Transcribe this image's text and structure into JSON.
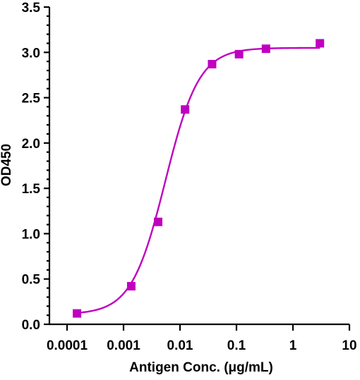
{
  "chart_data": {
    "type": "scatter",
    "title": "",
    "xlabel": "Antigen Conc. (μg/mL)",
    "ylabel": "OD450",
    "x_scale": "log",
    "xlim": [
      0.0001,
      10
    ],
    "ylim": [
      0,
      3.5
    ],
    "x_ticks": [
      {
        "value": 0.0001,
        "label": "0.0001"
      },
      {
        "value": 0.001,
        "label": "0.001"
      },
      {
        "value": 0.01,
        "label": "0.01"
      },
      {
        "value": 0.1,
        "label": "0.1"
      },
      {
        "value": 1,
        "label": "1"
      },
      {
        "value": 10,
        "label": "10"
      }
    ],
    "y_ticks": [
      {
        "value": 0,
        "label": "0.0"
      },
      {
        "value": 0.5,
        "label": "0.5"
      },
      {
        "value": 1.0,
        "label": "1.0"
      },
      {
        "value": 1.5,
        "label": "1.5"
      },
      {
        "value": 2.0,
        "label": "2.0"
      },
      {
        "value": 2.5,
        "label": "2.5"
      },
      {
        "value": 3.0,
        "label": "3.0"
      },
      {
        "value": 3.5,
        "label": "3.5"
      }
    ],
    "grid": false,
    "legend": "none",
    "series": [
      {
        "marker": "square",
        "color": "#c000c0",
        "points": [
          {
            "x": 0.00015,
            "y": 0.12
          },
          {
            "x": 0.00137,
            "y": 0.42
          },
          {
            "x": 0.0041,
            "y": 1.13
          },
          {
            "x": 0.0123,
            "y": 2.37
          },
          {
            "x": 0.037,
            "y": 2.87
          },
          {
            "x": 0.111,
            "y": 2.98
          },
          {
            "x": 0.333,
            "y": 3.04
          },
          {
            "x": 3.0,
            "y": 3.1
          }
        ]
      }
    ],
    "fit_curve": {
      "model": "4PL",
      "color": "#c000c0",
      "bottom": 0.11,
      "top": 3.05,
      "ec50": 0.0055,
      "hill": 1.45
    }
  }
}
